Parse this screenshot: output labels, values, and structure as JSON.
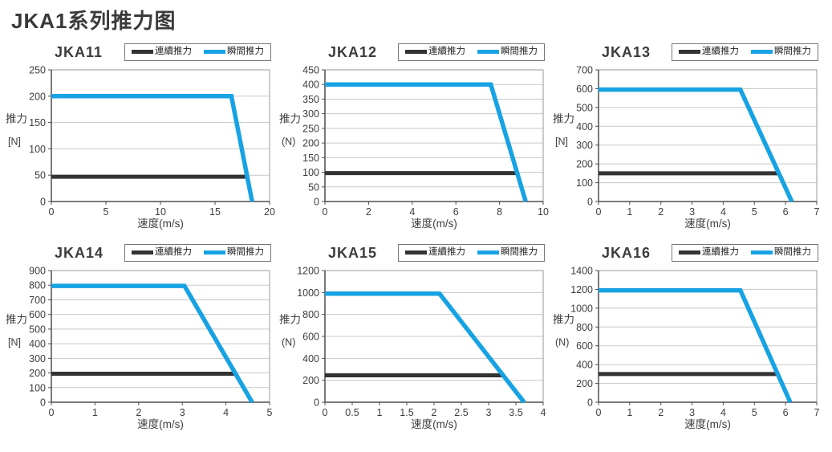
{
  "page": {
    "title": "JKA1系列推力图"
  },
  "legend": {
    "continuous": "連續推力",
    "instant": "瞬間推力"
  },
  "colors": {
    "continuous": "#333333",
    "instant": "#17a3e3",
    "grid": "#c8c8c8",
    "border": "#9a9a9a",
    "axis": "#4f4f4f",
    "text": "#3d3d3d",
    "legend_border": "#777777"
  },
  "chart_data": [
    {
      "type": "line",
      "title": "JKA11",
      "xlabel": "速度(m/s)",
      "ylabel": "推力",
      "yunit": "[N]",
      "xlim": [
        0,
        20
      ],
      "xticks": [
        0,
        5,
        10,
        15,
        20
      ],
      "ylim": [
        0,
        250
      ],
      "yticks": [
        0,
        50,
        100,
        150,
        200,
        250
      ],
      "grid": "horizontal",
      "legend_position": "top-right",
      "series": [
        {
          "name": "連續推力",
          "key": "continuous",
          "points": [
            [
              0,
              47
            ],
            [
              17.9,
              47
            ]
          ]
        },
        {
          "name": "瞬間推力",
          "key": "instant",
          "points": [
            [
              0,
              200
            ],
            [
              16.5,
              200
            ],
            [
              18.4,
              0
            ]
          ]
        }
      ]
    },
    {
      "type": "line",
      "title": "JKA12",
      "xlabel": "速度(m/s)",
      "ylabel": "推力",
      "yunit": "(N)",
      "xlim": [
        0,
        10
      ],
      "xticks": [
        0,
        2,
        4,
        6,
        8,
        10
      ],
      "ylim": [
        0,
        450
      ],
      "yticks": [
        0,
        50,
        100,
        150,
        200,
        250,
        300,
        350,
        400,
        450
      ],
      "grid": "horizontal",
      "legend_position": "top-right",
      "series": [
        {
          "name": "連續推力",
          "key": "continuous",
          "points": [
            [
              0,
              97
            ],
            [
              8.8,
              97
            ]
          ]
        },
        {
          "name": "瞬間推力",
          "key": "instant",
          "points": [
            [
              0,
              400
            ],
            [
              7.6,
              400
            ],
            [
              9.2,
              0
            ]
          ]
        }
      ]
    },
    {
      "type": "line",
      "title": "JKA13",
      "xlabel": "速度(m/s)",
      "ylabel": "推力",
      "yunit": "[N]",
      "xlim": [
        0,
        7
      ],
      "xticks": [
        0,
        1,
        2,
        3,
        4,
        5,
        6,
        7
      ],
      "ylim": [
        0,
        700
      ],
      "yticks": [
        0,
        100,
        200,
        300,
        400,
        500,
        600,
        700
      ],
      "grid": "horizontal",
      "legend_position": "top-right",
      "series": [
        {
          "name": "連續推力",
          "key": "continuous",
          "points": [
            [
              0,
              150
            ],
            [
              5.75,
              150
            ]
          ]
        },
        {
          "name": "瞬間推力",
          "key": "instant",
          "points": [
            [
              0,
              595
            ],
            [
              4.55,
              595
            ],
            [
              6.2,
              0
            ]
          ]
        }
      ]
    },
    {
      "type": "line",
      "title": "JKA14",
      "xlabel": "速度(m/s)",
      "ylabel": "推力",
      "yunit": "[N]",
      "xlim": [
        0,
        5
      ],
      "xticks": [
        0,
        1,
        2,
        3,
        4,
        5
      ],
      "ylim": [
        0,
        900
      ],
      "yticks": [
        0,
        100,
        200,
        300,
        400,
        500,
        600,
        700,
        800,
        900
      ],
      "grid": "horizontal",
      "legend_position": "top-right",
      "series": [
        {
          "name": "連續推力",
          "key": "continuous",
          "points": [
            [
              0,
              195
            ],
            [
              4.2,
              195
            ]
          ]
        },
        {
          "name": "瞬間推力",
          "key": "instant",
          "points": [
            [
              0,
              795
            ],
            [
              3.05,
              795
            ],
            [
              4.6,
              0
            ]
          ]
        }
      ]
    },
    {
      "type": "line",
      "title": "JKA15",
      "xlabel": "速度(m/s)",
      "ylabel": "推力",
      "yunit": "(N)",
      "xlim": [
        0,
        4
      ],
      "xticks": [
        0,
        0.5,
        1,
        1.5,
        2,
        2.5,
        3,
        3.5,
        4
      ],
      "ylim": [
        0,
        1200
      ],
      "yticks": [
        0,
        200,
        400,
        600,
        800,
        1000,
        1200
      ],
      "grid": "horizontal",
      "legend_position": "top-right",
      "series": [
        {
          "name": "連續推力",
          "key": "continuous",
          "points": [
            [
              0,
              245
            ],
            [
              3.25,
              245
            ]
          ]
        },
        {
          "name": "瞬間推力",
          "key": "instant",
          "points": [
            [
              0,
              990
            ],
            [
              2.1,
              990
            ],
            [
              3.65,
              0
            ]
          ]
        }
      ]
    },
    {
      "type": "line",
      "title": "JKA16",
      "xlabel": "速度(m/s)",
      "ylabel": "推力",
      "yunit": "(N)",
      "xlim": [
        0,
        7
      ],
      "xticks": [
        0,
        1,
        2,
        3,
        4,
        5,
        6,
        7
      ],
      "ylim": [
        0,
        1400
      ],
      "yticks": [
        0,
        200,
        400,
        600,
        800,
        1000,
        1200,
        1400
      ],
      "grid": "horizontal",
      "legend_position": "top-right",
      "series": [
        {
          "name": "連續推力",
          "key": "continuous",
          "points": [
            [
              0,
              300
            ],
            [
              5.75,
              300
            ]
          ]
        },
        {
          "name": "瞬間推力",
          "key": "instant",
          "points": [
            [
              0,
              1190
            ],
            [
              4.55,
              1190
            ],
            [
              6.15,
              0
            ]
          ]
        }
      ]
    }
  ]
}
